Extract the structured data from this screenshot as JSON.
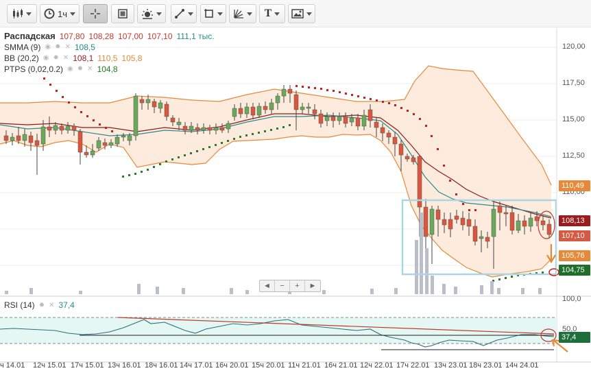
{
  "toolbar": {
    "interval_label": "1ч",
    "text_tool_label": "T"
  },
  "legend": {
    "symbol": "Распадская",
    "open": "107,80",
    "high": "108,28",
    "low": "107,00",
    "close": "107,10",
    "volume": "111,1 тыс.",
    "smma_name": "SMMA (9)",
    "smma_value": "108,5",
    "bb_name": "BB (20,2)",
    "bb_mid": "108,1",
    "bb_upper": "110,5",
    "bb_lower": "105,8",
    "ptps_name": "PTPS (0,02,0.2)",
    "ptps_value": "104,8",
    "rsi_name": "RSI (14)",
    "rsi_value": "37,4"
  },
  "price_axis": [
    "120,00",
    "117,50",
    "115,00",
    "112,50",
    "110,00",
    "100,0",
    "50,0"
  ],
  "price_labels": [
    {
      "text": "110,49",
      "color": "#e68a3a"
    },
    {
      "text": "108,13",
      "color": "#9b1c1c"
    },
    {
      "text": "107,10",
      "color": "#d45a43"
    },
    {
      "text": "105,76",
      "color": "#e68a3a"
    },
    {
      "text": "104,75",
      "color": "#1f6f2a"
    },
    {
      "text": "37,4",
      "color": "#1f6f3e"
    }
  ],
  "nav": [
    "◄",
    "−",
    "+",
    "►"
  ],
  "x_ticks": [
    "14.01",
    "12ч 15.01",
    "17ч 15.01",
    "13ч 16.01",
    "18ч 16.01",
    "14ч 17.01",
    "16ч 20.01",
    "15ч 20.01",
    "11ч 21.01",
    "16ч 21.01",
    "12ч 22.01",
    "17ч 22.01",
    "13ч 23.01",
    "18ч 23.01",
    "14ч 24.01"
  ],
  "x_ticks_raw": [
    "ч 14.01",
    "12ч 15.01",
    "17ч 15.01",
    "13ч 16.01",
    "18ч 16.01",
    "14ч 17.01",
    "16ч 20.01",
    "15ч 20.01",
    "11ч 21.01",
    "16ч 21.01",
    "12ч 22.01",
    "17ч 22.01",
    "13ч 23.01",
    "18ч 23.01",
    "14ч 24.01"
  ],
  "colors": {
    "up": "#6aa85a",
    "down": "#d9573e",
    "bb_band": "#fdebdd",
    "bb_line": "#e68a3a",
    "smma": "#2a8a8a",
    "bb_mid": "#8e1b1b",
    "psar_up": "#2a7a2a",
    "psar_down": "#c41e1e",
    "highlight": "#a9d6e5"
  }
}
